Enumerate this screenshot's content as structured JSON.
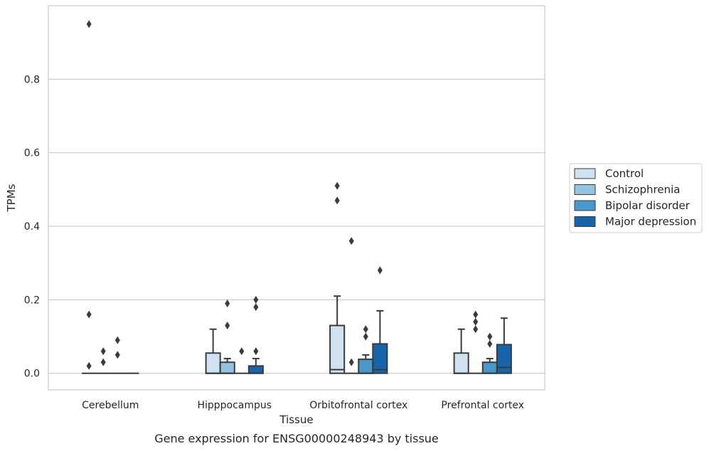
{
  "caption": "Gene expression for ENSG00000248943 by tissue",
  "chart_data": {
    "type": "box",
    "xlabel": "Tissue",
    "ylabel": "TPMs",
    "ylim": [
      -0.045,
      1.0
    ],
    "yticks": [
      "0.0",
      "0.2",
      "0.4",
      "0.6",
      "0.8"
    ],
    "ytick_values": [
      0.0,
      0.2,
      0.4,
      0.6,
      0.8
    ],
    "grid": "horizontal",
    "legend_position": "right",
    "categories": [
      "Cerebellum",
      "Hipppocampus",
      "Orbitofrontal cortex",
      "Prefrontal cortex"
    ],
    "series": [
      {
        "name": "Control",
        "color": "#d0e1f2",
        "boxes": [
          {
            "q1": 0,
            "median": 0,
            "q3": 0,
            "whisker_low": 0,
            "whisker_high": 0,
            "outliers": [
              0.02,
              0.16,
              0.95
            ]
          },
          {
            "q1": 0,
            "median": 0,
            "q3": 0.055,
            "whisker_low": 0,
            "whisker_high": 0.12,
            "outliers": []
          },
          {
            "q1": 0,
            "median": 0.01,
            "q3": 0.13,
            "whisker_low": 0,
            "whisker_high": 0.21,
            "outliers": [
              0.47,
              0.51
            ]
          },
          {
            "q1": 0,
            "median": 0,
            "q3": 0.055,
            "whisker_low": 0,
            "whisker_high": 0.12,
            "outliers": []
          }
        ]
      },
      {
        "name": "Schizophrenia",
        "color": "#94c4df",
        "boxes": [
          {
            "q1": 0,
            "median": 0,
            "q3": 0,
            "whisker_low": 0,
            "whisker_high": 0,
            "outliers": [
              0.03,
              0.06
            ]
          },
          {
            "q1": 0,
            "median": 0,
            "q3": 0.03,
            "whisker_low": 0,
            "whisker_high": 0.04,
            "outliers": [
              0.13,
              0.19
            ]
          },
          {
            "q1": 0,
            "median": 0,
            "q3": 0,
            "whisker_low": 0,
            "whisker_high": 0,
            "outliers": [
              0.03,
              0.36
            ]
          },
          {
            "q1": 0,
            "median": 0,
            "q3": 0,
            "whisker_low": 0,
            "whisker_high": 0,
            "outliers": [
              0.12,
              0.14,
              0.16
            ]
          }
        ]
      },
      {
        "name": "Bipolar disorder",
        "color": "#4a98c9",
        "boxes": [
          {
            "q1": 0,
            "median": 0,
            "q3": 0,
            "whisker_low": 0,
            "whisker_high": 0,
            "outliers": [
              0.05,
              0.09
            ]
          },
          {
            "q1": 0,
            "median": 0,
            "q3": 0,
            "whisker_low": 0,
            "whisker_high": 0,
            "outliers": [
              0.06
            ]
          },
          {
            "q1": 0,
            "median": 0,
            "q3": 0.038,
            "whisker_low": 0,
            "whisker_high": 0.05,
            "outliers": [
              0.1,
              0.12
            ]
          },
          {
            "q1": 0,
            "median": 0,
            "q3": 0.03,
            "whisker_low": 0,
            "whisker_high": 0.04,
            "outliers": [
              0.08,
              0.1
            ]
          }
        ]
      },
      {
        "name": "Major depression",
        "color": "#1764ab",
        "boxes": [
          {
            "q1": 0,
            "median": 0,
            "q3": 0,
            "whisker_low": 0,
            "whisker_high": 0,
            "outliers": []
          },
          {
            "q1": 0,
            "median": 0,
            "q3": 0.02,
            "whisker_low": 0,
            "whisker_high": 0.04,
            "outliers": [
              0.06,
              0.18,
              0.2
            ]
          },
          {
            "q1": 0,
            "median": 0.01,
            "q3": 0.08,
            "whisker_low": 0,
            "whisker_high": 0.17,
            "outliers": [
              0.28
            ]
          },
          {
            "q1": 0,
            "median": 0.016,
            "q3": 0.078,
            "whisker_low": 0,
            "whisker_high": 0.15,
            "outliers": []
          }
        ]
      }
    ]
  }
}
